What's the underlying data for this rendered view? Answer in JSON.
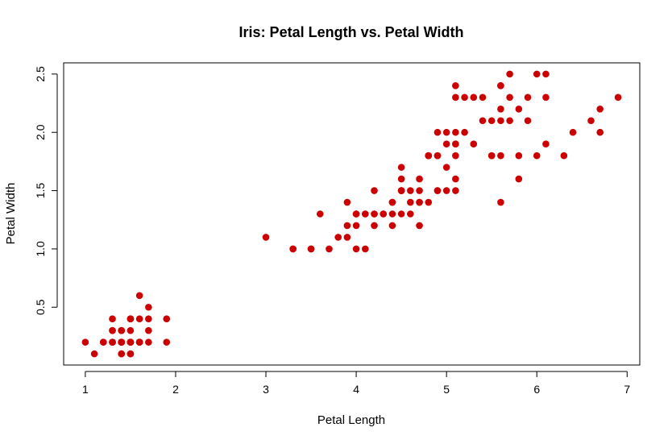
{
  "chart_data": {
    "type": "scatter",
    "title": "Iris: Petal Length vs. Petal Width",
    "xlabel": "Petal Length",
    "ylabel": "Petal Width",
    "xlim": [
      0.76,
      7.14
    ],
    "ylim": [
      0.004,
      2.596
    ],
    "xticks": [
      1,
      2,
      3,
      4,
      5,
      6,
      7
    ],
    "yticks": [
      0.5,
      1.0,
      1.5,
      2.0,
      2.5
    ],
    "ytick_labels": [
      "0.5",
      "1.0",
      "1.5",
      "2.0",
      "2.5"
    ],
    "grid": false,
    "point_color": "#cc0000",
    "points": [
      [
        1.4,
        0.2
      ],
      [
        1.4,
        0.2
      ],
      [
        1.3,
        0.2
      ],
      [
        1.5,
        0.2
      ],
      [
        1.4,
        0.2
      ],
      [
        1.7,
        0.4
      ],
      [
        1.4,
        0.3
      ],
      [
        1.5,
        0.2
      ],
      [
        1.4,
        0.2
      ],
      [
        1.5,
        0.1
      ],
      [
        1.5,
        0.2
      ],
      [
        1.6,
        0.2
      ],
      [
        1.4,
        0.1
      ],
      [
        1.1,
        0.1
      ],
      [
        1.2,
        0.2
      ],
      [
        1.5,
        0.4
      ],
      [
        1.3,
        0.4
      ],
      [
        1.4,
        0.3
      ],
      [
        1.7,
        0.3
      ],
      [
        1.5,
        0.3
      ],
      [
        1.7,
        0.2
      ],
      [
        1.5,
        0.4
      ],
      [
        1.0,
        0.2
      ],
      [
        1.7,
        0.5
      ],
      [
        1.9,
        0.2
      ],
      [
        1.6,
        0.2
      ],
      [
        1.6,
        0.4
      ],
      [
        1.5,
        0.2
      ],
      [
        1.4,
        0.2
      ],
      [
        1.6,
        0.2
      ],
      [
        1.6,
        0.2
      ],
      [
        1.5,
        0.4
      ],
      [
        1.5,
        0.1
      ],
      [
        1.4,
        0.2
      ],
      [
        1.5,
        0.2
      ],
      [
        1.2,
        0.2
      ],
      [
        1.3,
        0.2
      ],
      [
        1.4,
        0.1
      ],
      [
        1.3,
        0.2
      ],
      [
        1.5,
        0.2
      ],
      [
        1.3,
        0.3
      ],
      [
        1.3,
        0.3
      ],
      [
        1.3,
        0.2
      ],
      [
        1.6,
        0.6
      ],
      [
        1.9,
        0.4
      ],
      [
        1.4,
        0.3
      ],
      [
        1.6,
        0.2
      ],
      [
        1.4,
        0.2
      ],
      [
        1.5,
        0.2
      ],
      [
        1.4,
        0.2
      ],
      [
        4.7,
        1.4
      ],
      [
        4.5,
        1.5
      ],
      [
        4.9,
        1.5
      ],
      [
        4.0,
        1.3
      ],
      [
        4.6,
        1.5
      ],
      [
        4.5,
        1.3
      ],
      [
        4.7,
        1.6
      ],
      [
        3.3,
        1.0
      ],
      [
        4.6,
        1.3
      ],
      [
        3.9,
        1.4
      ],
      [
        3.5,
        1.0
      ],
      [
        4.2,
        1.5
      ],
      [
        4.0,
        1.0
      ],
      [
        4.7,
        1.4
      ],
      [
        3.6,
        1.3
      ],
      [
        4.4,
        1.4
      ],
      [
        4.5,
        1.5
      ],
      [
        4.1,
        1.0
      ],
      [
        4.5,
        1.5
      ],
      [
        3.9,
        1.1
      ],
      [
        4.8,
        1.8
      ],
      [
        4.0,
        1.3
      ],
      [
        4.9,
        1.5
      ],
      [
        4.7,
        1.2
      ],
      [
        4.3,
        1.3
      ],
      [
        4.4,
        1.4
      ],
      [
        4.8,
        1.4
      ],
      [
        5.0,
        1.7
      ],
      [
        4.5,
        1.5
      ],
      [
        3.5,
        1.0
      ],
      [
        3.8,
        1.1
      ],
      [
        3.7,
        1.0
      ],
      [
        3.9,
        1.2
      ],
      [
        5.1,
        1.6
      ],
      [
        4.5,
        1.5
      ],
      [
        4.5,
        1.6
      ],
      [
        4.7,
        1.5
      ],
      [
        4.4,
        1.3
      ],
      [
        4.1,
        1.3
      ],
      [
        4.0,
        1.3
      ],
      [
        4.4,
        1.2
      ],
      [
        4.6,
        1.4
      ],
      [
        4.0,
        1.2
      ],
      [
        3.3,
        1.0
      ],
      [
        4.2,
        1.3
      ],
      [
        4.2,
        1.2
      ],
      [
        4.2,
        1.3
      ],
      [
        4.3,
        1.3
      ],
      [
        3.0,
        1.1
      ],
      [
        4.1,
        1.3
      ],
      [
        6.0,
        2.5
      ],
      [
        5.1,
        1.9
      ],
      [
        5.9,
        2.1
      ],
      [
        5.6,
        1.8
      ],
      [
        5.8,
        2.2
      ],
      [
        6.6,
        2.1
      ],
      [
        4.5,
        1.7
      ],
      [
        6.3,
        1.8
      ],
      [
        5.8,
        1.8
      ],
      [
        6.1,
        2.5
      ],
      [
        5.1,
        2.0
      ],
      [
        5.3,
        1.9
      ],
      [
        5.5,
        2.1
      ],
      [
        5.0,
        2.0
      ],
      [
        5.1,
        2.4
      ],
      [
        5.3,
        2.3
      ],
      [
        5.5,
        1.8
      ],
      [
        6.7,
        2.2
      ],
      [
        6.9,
        2.3
      ],
      [
        5.0,
        1.5
      ],
      [
        5.7,
        2.3
      ],
      [
        4.9,
        2.0
      ],
      [
        6.7,
        2.0
      ],
      [
        4.9,
        1.8
      ],
      [
        5.7,
        2.1
      ],
      [
        6.0,
        1.8
      ],
      [
        4.8,
        1.8
      ],
      [
        4.9,
        1.8
      ],
      [
        5.6,
        2.1
      ],
      [
        5.8,
        1.6
      ],
      [
        6.1,
        1.9
      ],
      [
        6.4,
        2.0
      ],
      [
        5.6,
        2.2
      ],
      [
        5.1,
        1.5
      ],
      [
        5.6,
        1.4
      ],
      [
        6.1,
        2.3
      ],
      [
        5.6,
        2.4
      ],
      [
        5.5,
        1.8
      ],
      [
        4.8,
        1.8
      ],
      [
        5.4,
        2.1
      ],
      [
        5.6,
        2.4
      ],
      [
        5.1,
        2.3
      ],
      [
        5.1,
        1.9
      ],
      [
        5.9,
        2.3
      ],
      [
        5.7,
        2.5
      ],
      [
        5.2,
        2.3
      ],
      [
        5.0,
        1.9
      ],
      [
        5.2,
        2.0
      ],
      [
        5.4,
        2.3
      ],
      [
        5.1,
        1.8
      ]
    ]
  }
}
